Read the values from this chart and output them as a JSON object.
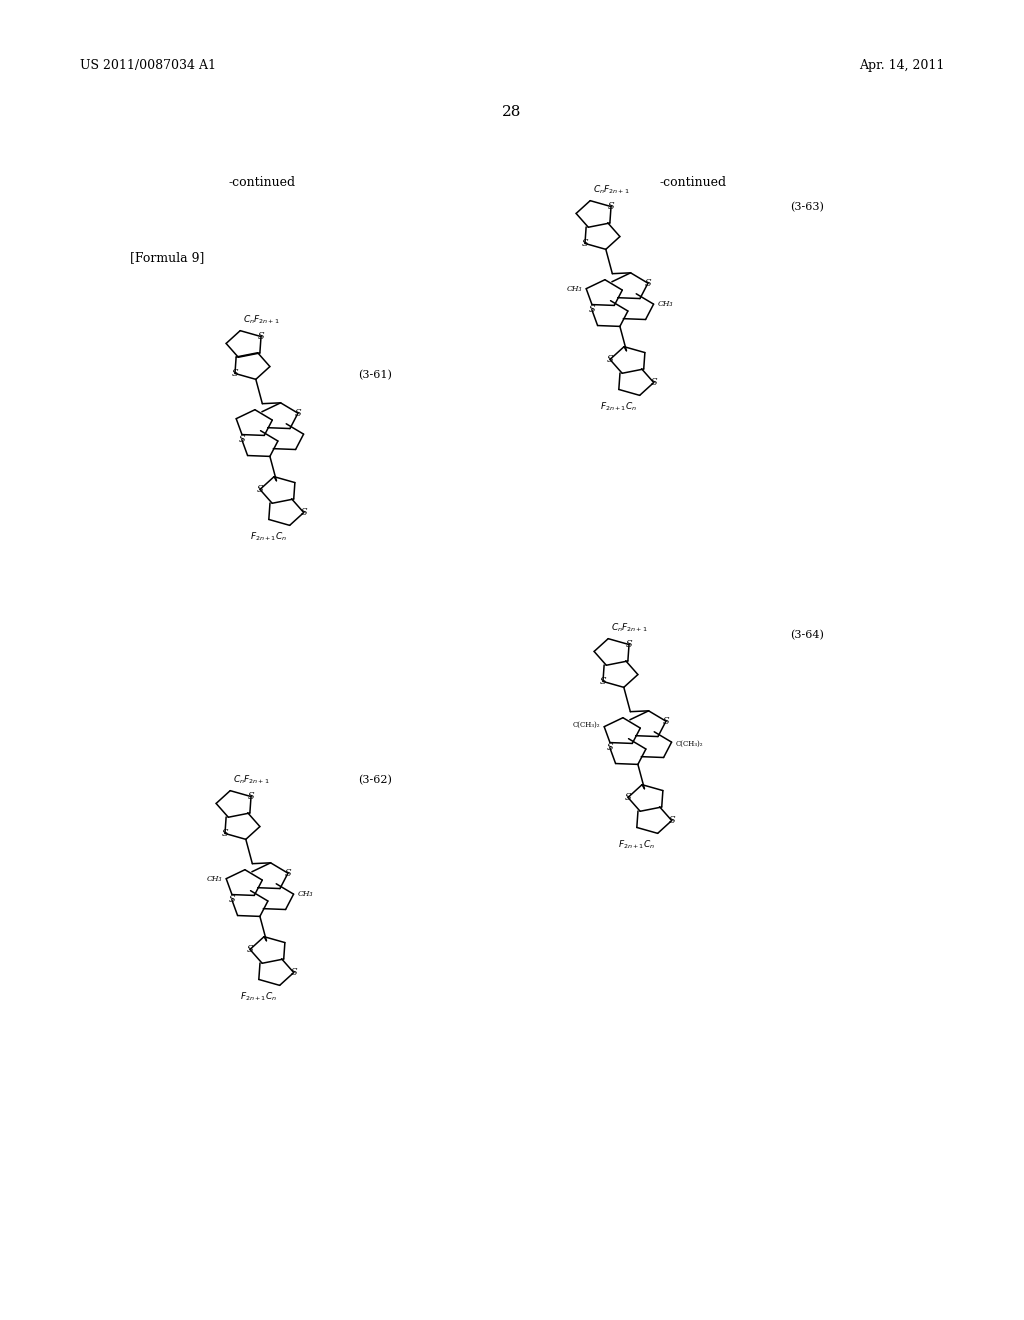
{
  "page_header_left": "US 2011/0087034 A1",
  "page_header_right": "Apr. 14, 2011",
  "page_number": "28",
  "continued_left": "-continued",
  "continued_right": "-continued",
  "formula_label": "[Formula 9]",
  "label_3_61": "(3-61)",
  "label_3_62": "(3-62)",
  "label_3_63": "(3-63)",
  "label_3_64": "(3-64)",
  "background_color": "#ffffff",
  "text_color": "#000000",
  "line_color": "#000000"
}
